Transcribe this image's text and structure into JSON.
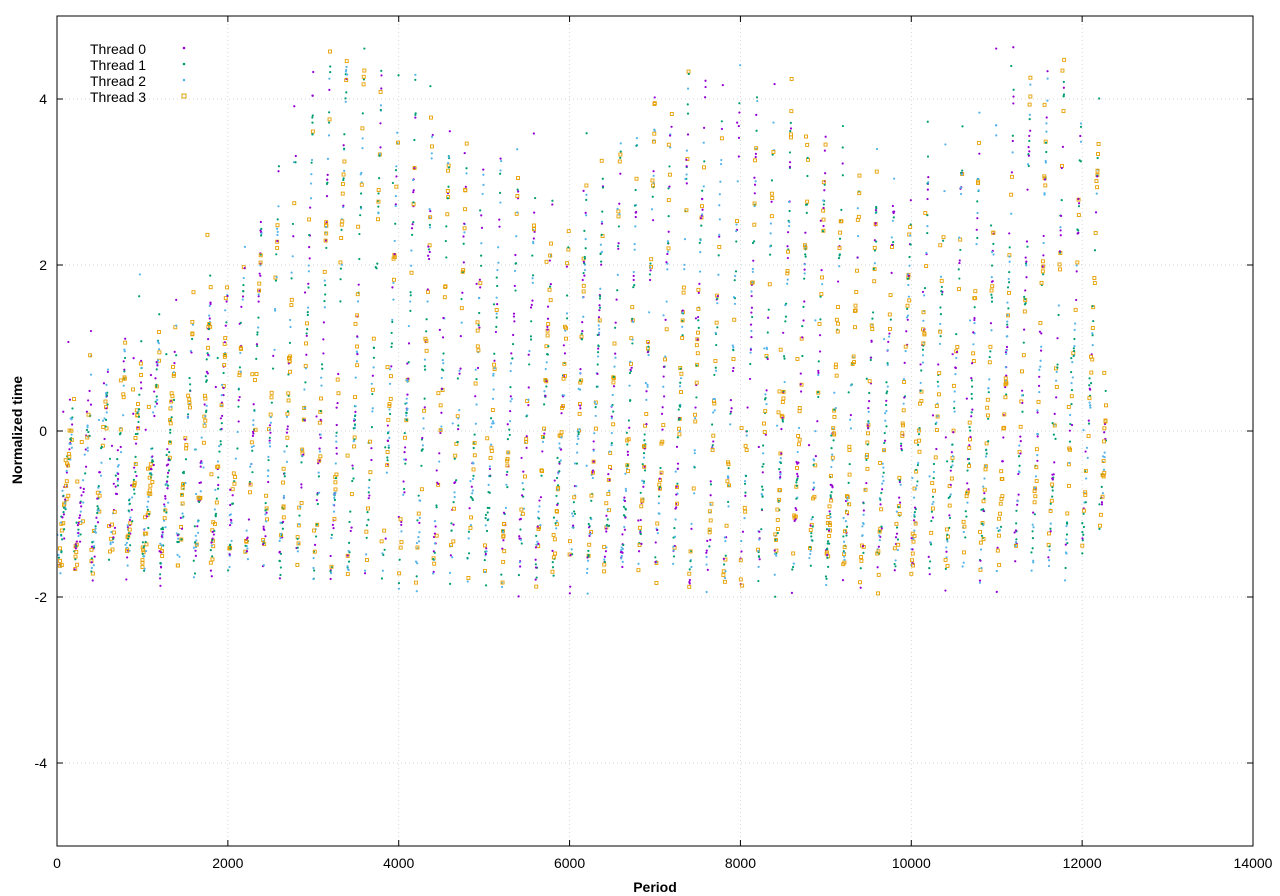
{
  "chart_data": {
    "type": "scatter",
    "title": "",
    "xlabel": "Period",
    "ylabel": "Normalized time",
    "xlim": [
      0,
      14000
    ],
    "ylim": [
      -5,
      5
    ],
    "x_ticks": [
      0,
      2000,
      4000,
      6000,
      8000,
      10000,
      12000,
      14000
    ],
    "y_ticks": [
      -4,
      -2,
      0,
      2,
      4
    ],
    "x_tick_labels": [
      "0",
      "2000",
      "4000",
      "6000",
      "8000",
      "10000",
      "12000",
      "14000"
    ],
    "y_tick_labels": [
      "-4",
      "-2",
      "0",
      "2",
      "4"
    ],
    "grid": true,
    "legend_position": "top-left",
    "x_max_observed": 12280,
    "series": [
      {
        "name": "Thread 0",
        "color": "#9400d3",
        "marker": "dot"
      },
      {
        "name": "Thread 1",
        "color": "#009e73",
        "marker": "dot"
      },
      {
        "name": "Thread 2",
        "color": "#56b4e9",
        "marker": "dot"
      },
      {
        "name": "Thread 3",
        "color": "#e69f00",
        "marker": "square"
      }
    ],
    "trend": {
      "description_points": [
        {
          "x": 0,
          "y_center": -1.0,
          "y_spread_low": -1.6,
          "y_spread_high": 0.3
        },
        {
          "x": 2000,
          "y_center": -0.5,
          "y_spread_low": -1.5,
          "y_spread_high": 1.8
        },
        {
          "x": 3300,
          "y_center": 0.5,
          "y_spread_low": -1.7,
          "y_spread_high": 4.8
        },
        {
          "x": 6000,
          "y_center": -0.3,
          "y_spread_low": -1.6,
          "y_spread_high": 2.6
        },
        {
          "x": 7500,
          "y_center": 0.0,
          "y_spread_low": -1.7,
          "y_spread_high": 4.7
        },
        {
          "x": 10000,
          "y_center": -0.2,
          "y_spread_low": -1.6,
          "y_spread_high": 2.8
        },
        {
          "x": 11800,
          "y_center": 0.2,
          "y_spread_low": -1.6,
          "y_spread_high": 4.8
        },
        {
          "x": 12280,
          "y_center": 0.2,
          "y_spread_low": -1.0,
          "y_spread_high": 3.6
        }
      ],
      "spikes_at_x": [
        3330,
        7500,
        11850
      ],
      "period_of_oscillation": 200
    }
  }
}
